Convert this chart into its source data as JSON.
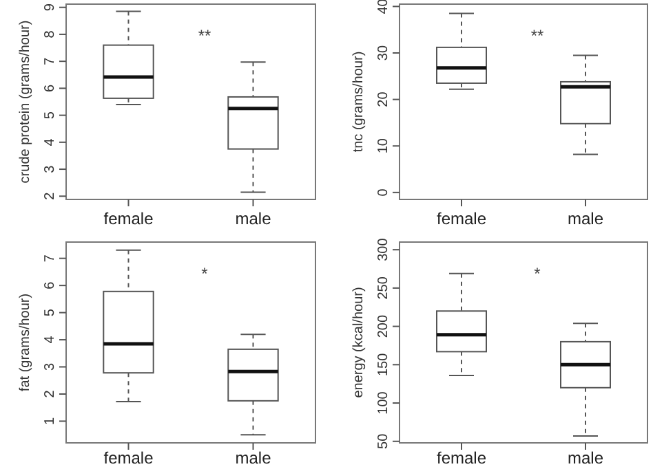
{
  "chart_data": [
    {
      "type": "box",
      "ylabel": "crude protein (grams/hour)",
      "categories": [
        "female",
        "male"
      ],
      "ylim": [
        1.88,
        9.12
      ],
      "yticks": [
        2,
        3,
        4,
        5,
        6,
        7,
        8,
        9
      ],
      "annotations": [
        "**"
      ],
      "boxes": [
        {
          "low": 5.4,
          "q1": 5.63,
          "median": 6.42,
          "q3": 7.6,
          "high": 8.85
        },
        {
          "low": 2.15,
          "q1": 3.75,
          "median": 5.25,
          "q3": 5.68,
          "high": 6.97
        }
      ]
    },
    {
      "type": "box",
      "ylabel": "tnc (grams/hour)",
      "categories": [
        "female",
        "male"
      ],
      "ylim": [
        -1.5,
        40.5
      ],
      "yticks": [
        0,
        10,
        20,
        30,
        40
      ],
      "annotations": [
        "**"
      ],
      "boxes": [
        {
          "low": 22.2,
          "q1": 23.5,
          "median": 26.8,
          "q3": 31.2,
          "high": 38.5
        },
        {
          "low": 8.2,
          "q1": 14.8,
          "median": 22.7,
          "q3": 23.8,
          "high": 29.5
        }
      ]
    },
    {
      "type": "box",
      "ylabel": "fat (grams/hour)",
      "categories": [
        "female",
        "male"
      ],
      "ylim": [
        0.2,
        7.6
      ],
      "yticks": [
        1,
        2,
        3,
        4,
        5,
        6,
        7
      ],
      "annotations": [
        "*"
      ],
      "boxes": [
        {
          "low": 1.72,
          "q1": 2.78,
          "median": 3.85,
          "q3": 5.78,
          "high": 7.3
        },
        {
          "low": 0.5,
          "q1": 1.75,
          "median": 2.83,
          "q3": 3.65,
          "high": 4.2
        }
      ]
    },
    {
      "type": "box",
      "ylabel": "energy (kcal/hour)",
      "categories": [
        "female",
        "male"
      ],
      "ylim": [
        48,
        310
      ],
      "yticks": [
        50,
        100,
        150,
        200,
        250,
        300
      ],
      "annotations": [
        "*"
      ],
      "boxes": [
        {
          "low": 136,
          "q1": 167,
          "median": 189,
          "q3": 220,
          "high": 269
        },
        {
          "low": 57,
          "q1": 120,
          "median": 150,
          "q3": 180,
          "high": 204
        }
      ]
    }
  ]
}
